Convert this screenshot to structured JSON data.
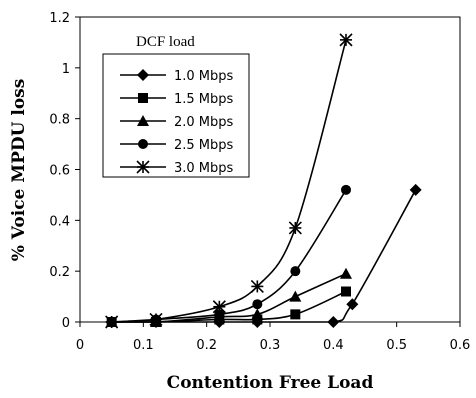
{
  "chart_data": {
    "type": "line",
    "xlabel": "Contention Free Load",
    "ylabel": "% Voice MPDU loss",
    "xlim": [
      0,
      0.6
    ],
    "ylim": [
      0,
      1.2
    ],
    "x_ticks": [
      "0",
      "0.1",
      "0.2",
      "0.3",
      "0.4",
      "0.5",
      "0.6"
    ],
    "y_ticks": [
      "0",
      "0.2",
      "0.4",
      "0.6",
      "0.8",
      "1",
      "1.2"
    ],
    "grid": false,
    "legend": {
      "title": "DCF load",
      "placement": "top-left"
    },
    "series": [
      {
        "name": "1.0 Mbps",
        "marker": "diamond",
        "x": [
          0.05,
          0.12,
          0.22,
          0.28,
          0.4,
          0.43,
          0.53
        ],
        "y": [
          0.0,
          0.0,
          0.0,
          0.0,
          0.0,
          0.07,
          0.52
        ]
      },
      {
        "name": "1.5 Mbps",
        "marker": "square",
        "x": [
          0.05,
          0.12,
          0.22,
          0.28,
          0.34,
          0.42
        ],
        "y": [
          0.0,
          0.0,
          0.01,
          0.01,
          0.03,
          0.12
        ]
      },
      {
        "name": "2.0 Mbps",
        "marker": "triangle",
        "x": [
          0.05,
          0.12,
          0.22,
          0.28,
          0.34,
          0.42
        ],
        "y": [
          0.0,
          0.0,
          0.02,
          0.03,
          0.1,
          0.19
        ]
      },
      {
        "name": "2.5 Mbps",
        "marker": "circle",
        "x": [
          0.05,
          0.12,
          0.22,
          0.28,
          0.34,
          0.42
        ],
        "y": [
          0.0,
          0.01,
          0.03,
          0.07,
          0.2,
          0.52
        ]
      },
      {
        "name": "3.0 Mbps",
        "marker": "star",
        "x": [
          0.05,
          0.12,
          0.22,
          0.28,
          0.34,
          0.42
        ],
        "y": [
          0.0,
          0.01,
          0.06,
          0.14,
          0.37,
          1.11
        ]
      }
    ]
  }
}
